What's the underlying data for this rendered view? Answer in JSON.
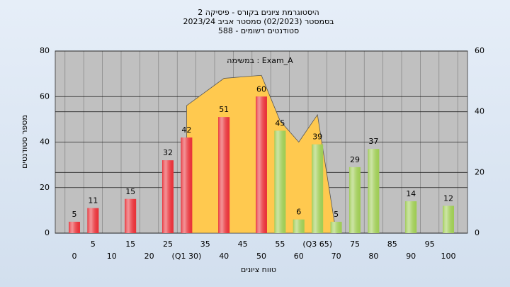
{
  "chart_data": {
    "type": "bar",
    "title": "היסטוגרמת ציונים בקורס - פיסיקה 2",
    "subtitle": "בסמסטר  (02/2023)  סמסטר אביב 2023/24",
    "subtitle2": "סטודנטים רשומים - 588",
    "annotation": "במשימה : Exam_A",
    "x_label": "טווח ציונים",
    "y_label": "מספר סטודנטים",
    "categories": [
      "0",
      "5",
      "10",
      "15",
      "20",
      "25",
      "(Q1 30)",
      "35",
      "40",
      "45",
      "50",
      "55",
      "60",
      "(Q3 65)",
      "70",
      "75",
      "80",
      "85",
      "90",
      "95",
      "100"
    ],
    "series": [
      {
        "color": "#e8333a",
        "values": [
          5,
          11,
          null,
          15,
          null,
          32,
          42,
          null,
          51,
          null,
          60,
          null,
          null,
          null,
          null,
          null,
          null,
          null,
          null,
          null,
          null
        ]
      },
      {
        "color": "#9fcc55",
        "values": [
          null,
          null,
          null,
          null,
          null,
          null,
          null,
          null,
          null,
          null,
          null,
          45,
          6,
          39,
          5,
          29,
          37,
          null,
          14,
          null,
          12
        ]
      },
      {
        "type": "area",
        "axis": "y2",
        "color": "#ffc94f",
        "values": [
          null,
          null,
          null,
          null,
          null,
          null,
          42,
          46.5,
          51,
          51.5,
          52,
          37,
          30,
          39,
          0,
          null,
          null,
          null,
          null,
          null,
          null
        ]
      }
    ],
    "ylim": [
      0,
      80
    ],
    "yticks": [
      0,
      20,
      40,
      60,
      80
    ],
    "y2lim": [
      0,
      60
    ],
    "y2ticks": [
      0,
      20,
      40,
      60
    ],
    "grid": true
  }
}
